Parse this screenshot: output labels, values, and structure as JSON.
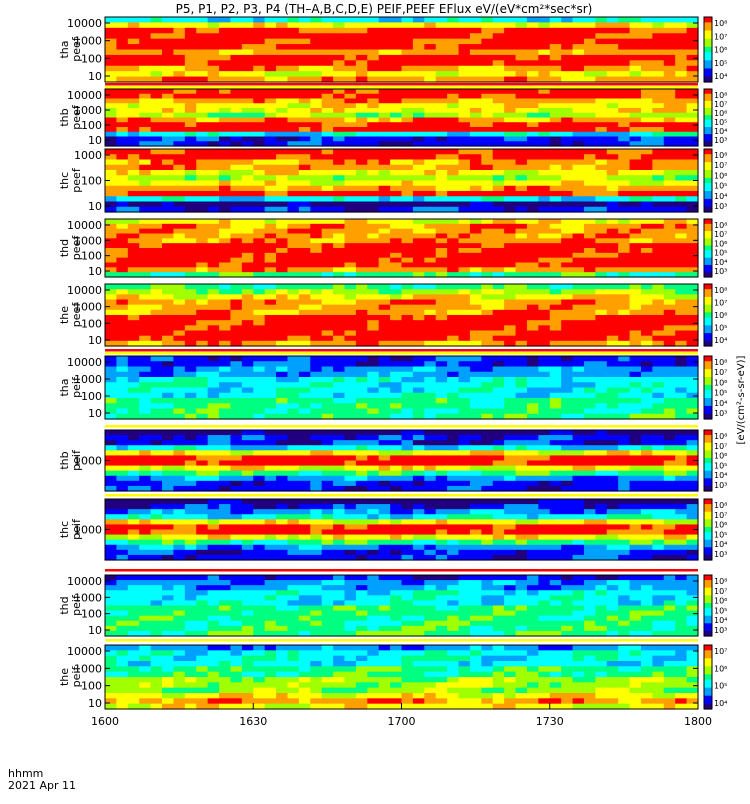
{
  "chart_data": {
    "type": "heatmap",
    "title": "P5, P1, P2, P3, P4 (TH–A,B,C,D,E) PEIF,PEEF EFlux eV/(eV*cm²*sec*sr)",
    "colorbar_label": "[eV/(cm²-s-sr-eV)]",
    "colormap": [
      "#20007f",
      "#0000ff",
      "#00a0ff",
      "#00ffff",
      "#00ff80",
      "#a0ff00",
      "#ffff00",
      "#ffa000",
      "#ff0000"
    ],
    "x_axis": {
      "ticks": [
        "1600",
        "1630",
        "1700",
        "1730",
        "1800"
      ],
      "label_line1": "hhmm",
      "label_line2": "2021 Apr 11"
    },
    "panels": [
      {
        "name": "tha peef",
        "line1": "tha",
        "line2": "peef",
        "y_ticks": [
          "10000",
          "1000",
          "100",
          "10"
        ],
        "cbar_ticks": [
          "10⁸",
          "10⁷",
          "10⁶",
          "10⁵",
          "10⁴"
        ],
        "profile": [
          3,
          6,
          8,
          8,
          8,
          8,
          7,
          8,
          8,
          7,
          6,
          7
        ]
      },
      {
        "name": "thb peef",
        "line1": "thb",
        "line2": "peef",
        "y_ticks": [
          "10000",
          "1000",
          "100",
          "10"
        ],
        "cbar_ticks": [
          "10⁸",
          "10⁷",
          "10⁶",
          "10⁵",
          "10⁴",
          "10³"
        ],
        "profile": [
          8,
          8,
          7,
          6,
          6,
          5,
          7,
          8,
          8,
          3,
          1,
          1
        ]
      },
      {
        "name": "thc peef",
        "line1": "thc",
        "line2": "peef",
        "y_ticks": [
          "1000",
          "100",
          "10"
        ],
        "cbar_ticks": [
          "10⁸",
          "10⁷",
          "10⁶",
          "10⁵",
          "10⁴",
          "10³"
        ],
        "profile": [
          8,
          8,
          7,
          7,
          6,
          5,
          6,
          7,
          8,
          3,
          0,
          1
        ]
      },
      {
        "name": "thd peef",
        "line1": "thd",
        "line2": "peef",
        "y_ticks": [
          "10000",
          "1000",
          "100",
          "10"
        ],
        "cbar_ticks": [
          "10⁸",
          "10⁷",
          "10⁶",
          "10⁵",
          "10⁴",
          "10³"
        ],
        "profile": [
          6,
          7,
          7,
          7,
          7,
          8,
          8,
          8,
          8,
          8,
          7,
          4
        ]
      },
      {
        "name": "the peef",
        "line1": "the",
        "line2": "peef",
        "y_ticks": [
          "10000",
          "1000",
          "100",
          "10"
        ],
        "cbar_ticks": [
          "10⁸",
          "10⁷",
          "10⁶",
          "10⁵",
          "10⁴"
        ],
        "profile": [
          4,
          5,
          6,
          7,
          7,
          7,
          8,
          8,
          8,
          8,
          8,
          7
        ]
      },
      {
        "name": "tha peif",
        "line1": "tha",
        "line2": "peif",
        "y_ticks": [
          "10000",
          "1000",
          "100",
          "10"
        ],
        "cbar_ticks": [
          "10⁸",
          "10⁷",
          "10⁶",
          "10⁵",
          "10⁴",
          "10³"
        ],
        "profile": [
          1,
          1,
          2,
          2,
          3,
          3,
          3,
          3,
          4,
          4,
          4,
          4
        ]
      },
      {
        "name": "thb peif",
        "line1": "thb",
        "line2": "peif",
        "y_ticks": [
          "1000"
        ],
        "cbar_ticks": [
          "10⁸",
          "10⁷",
          "10⁶",
          "10⁵",
          "10⁴",
          "10³"
        ],
        "profile": [
          0,
          1,
          1,
          3,
          6,
          8,
          8,
          6,
          4,
          2,
          1,
          1
        ]
      },
      {
        "name": "thc peif",
        "line1": "thc",
        "line2": "peif",
        "y_ticks": [
          "1000"
        ],
        "cbar_ticks": [
          "10⁸",
          "10⁷",
          "10⁶",
          "10⁵",
          "10⁴",
          "10³"
        ],
        "profile": [
          0,
          1,
          2,
          3,
          6,
          8,
          8,
          6,
          4,
          2,
          1,
          1
        ]
      },
      {
        "name": "thd peif",
        "line1": "thd",
        "line2": "peif",
        "y_ticks": [
          "10000",
          "1000",
          "100",
          "10"
        ],
        "cbar_ticks": [
          "10⁸",
          "10⁷",
          "10⁶",
          "10⁵",
          "10⁴",
          "10³"
        ],
        "profile": [
          1,
          2,
          2,
          3,
          3,
          3,
          4,
          4,
          4,
          4,
          4,
          4
        ]
      },
      {
        "name": "the peif",
        "line1": "the",
        "line2": "peif",
        "y_ticks": [
          "10000",
          "1000",
          "100",
          "10"
        ],
        "cbar_ticks": [
          "10⁷",
          "10⁶",
          "10⁵",
          "10⁴"
        ],
        "profile": [
          2,
          3,
          3,
          3,
          4,
          4,
          5,
          5,
          5,
          6,
          7,
          6
        ]
      }
    ]
  }
}
